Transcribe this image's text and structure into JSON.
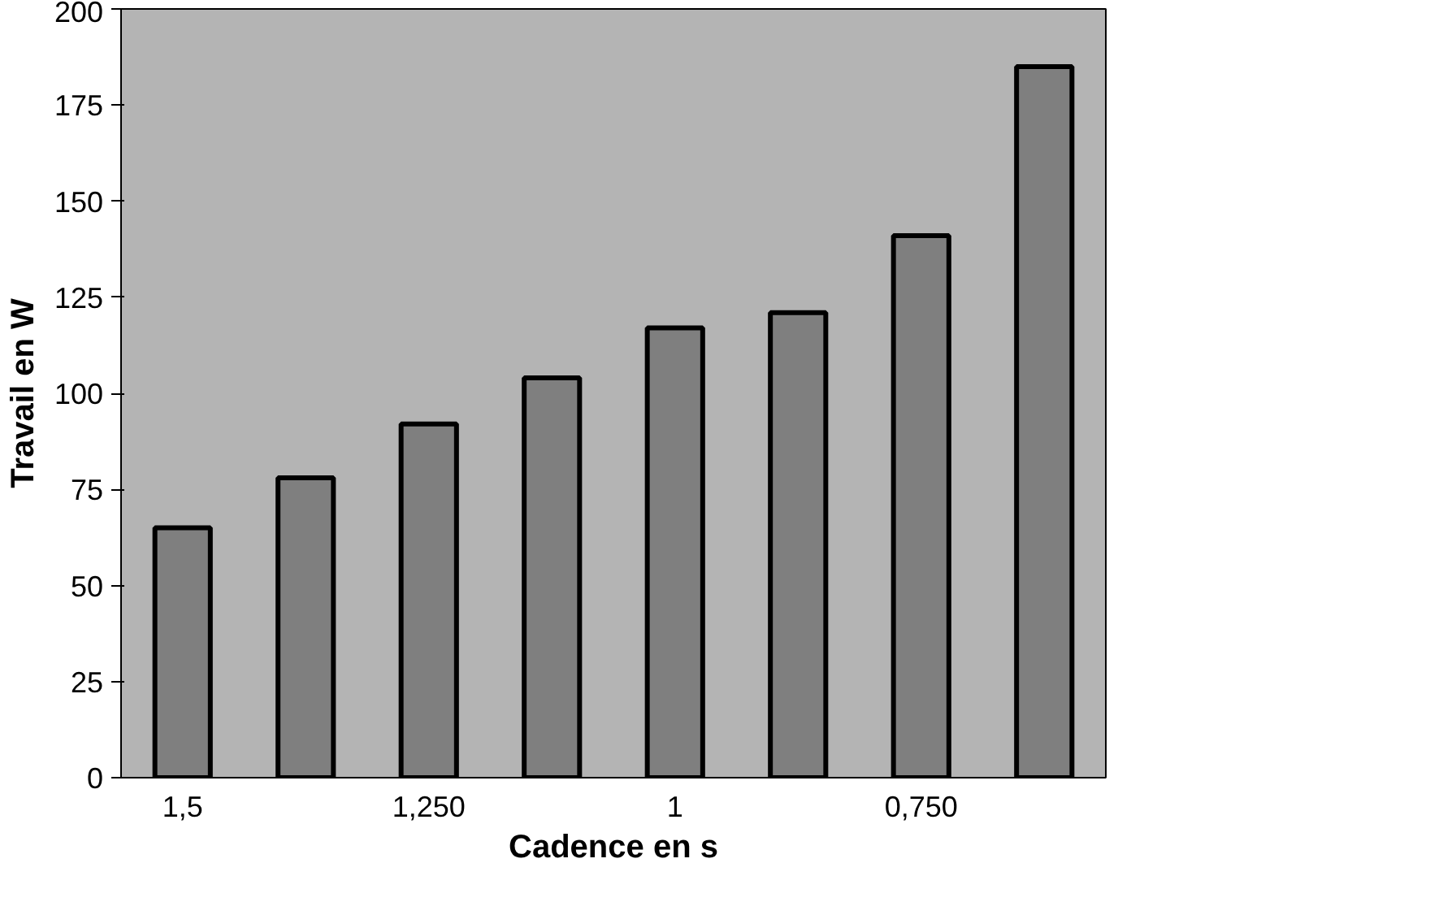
{
  "chart_data": {
    "type": "bar",
    "xlabel": "Cadence en s",
    "ylabel": "Travail en W",
    "categories": [
      "1,5",
      null,
      "1,250",
      null,
      "1",
      null,
      "0,750",
      null
    ],
    "values": [
      65,
      78,
      92,
      104,
      117,
      121,
      141,
      185
    ],
    "color": "#7f7f7f",
    "ylim": [
      0,
      200
    ],
    "yticks": [
      0,
      25,
      50,
      75,
      100,
      125,
      150,
      175,
      200
    ],
    "grid": false
  }
}
